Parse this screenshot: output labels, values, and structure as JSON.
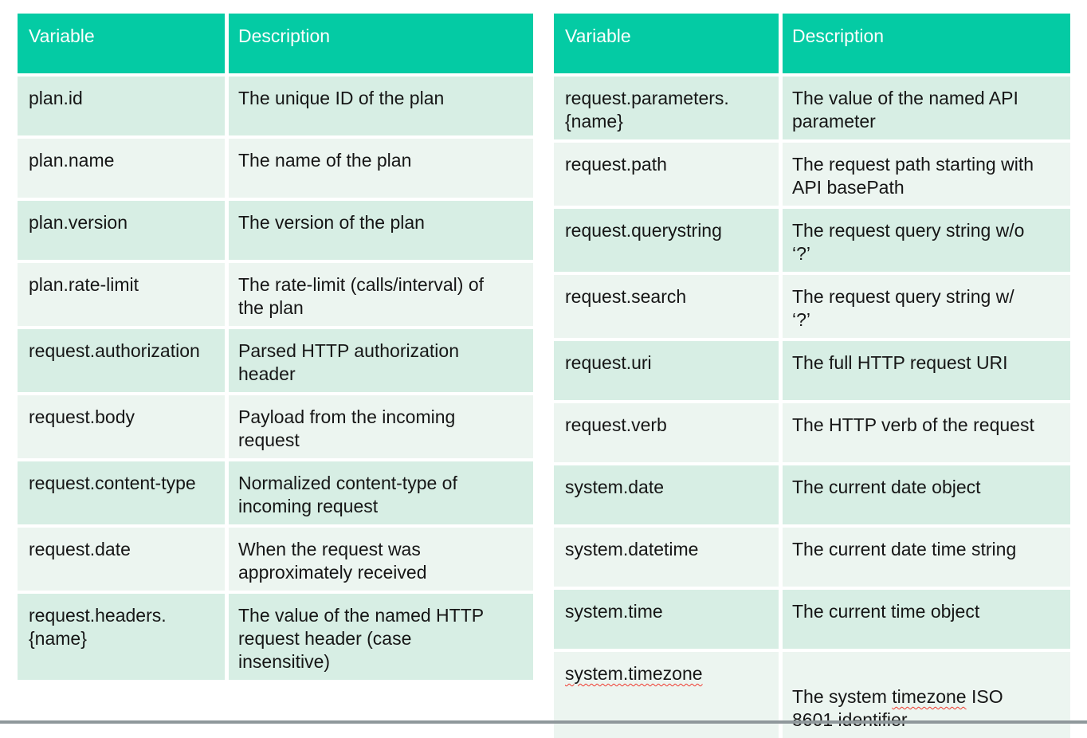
{
  "colors": {
    "header_bg": "#04cba4",
    "header_text": "#fdfefd",
    "row_dark": "#d7eee4",
    "row_light": "#ecf5f0",
    "body_text": "#161616",
    "spellcheck_squiggle": "#f0392e",
    "bottom_bar": "#8f989b"
  },
  "left_table": {
    "headers": {
      "variable": "Variable",
      "description": "Description"
    },
    "rows": [
      {
        "variable": "plan.id",
        "description": "The unique ID of the plan"
      },
      {
        "variable": "plan.name",
        "description": "The name of the plan"
      },
      {
        "variable": "plan.version",
        "description": "The version of the plan"
      },
      {
        "variable": "plan.rate-limit",
        "description": "The rate-limit (calls/interval) of the plan"
      },
      {
        "variable": "request.authorization",
        "description": "Parsed HTTP authorization header"
      },
      {
        "variable": "request.body",
        "description": "Payload from the incoming request"
      },
      {
        "variable": "request.content-type",
        "description": "Normalized content-type of incoming request"
      },
      {
        "variable": "request.date",
        "description": "When the request was approximately received"
      },
      {
        "variable": "request.headers.​{name}",
        "description": "The value of the named HTTP request header (case insensitive)"
      }
    ]
  },
  "right_table": {
    "headers": {
      "variable": "Variable",
      "description": "Description"
    },
    "rows": [
      {
        "variable": "request.parameters.​{name}",
        "description": "The value of the named API parameter"
      },
      {
        "variable": "request.path",
        "description": "The request path starting with API basePath"
      },
      {
        "variable": "request.querystring",
        "description": "The request query string w/o\n‘?’"
      },
      {
        "variable": "request.search",
        "description": "The request query string w/\n‘?’"
      },
      {
        "variable": "request.uri",
        "description": "The full HTTP request URI"
      },
      {
        "variable": "request.verb",
        "description": "The HTTP verb of the request"
      },
      {
        "variable": "system.date",
        "description": "The current date object"
      },
      {
        "variable": "system.datetime",
        "description": "The current date time string"
      },
      {
        "variable": "system.time",
        "description": "The current time object"
      },
      {
        "variable": "system.timezone",
        "desc_before": "The system ",
        "desc_misspelled": "timezone",
        "desc_after": " ISO 8601 identifier"
      }
    ]
  }
}
